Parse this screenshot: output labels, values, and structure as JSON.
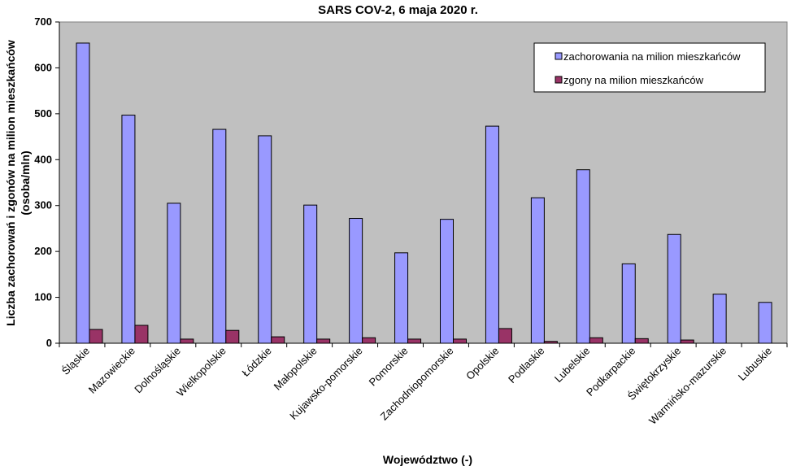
{
  "chart_data": {
    "type": "bar",
    "title": "SARS COV-2, 6 maja 2020 r.",
    "xlabel": "Województwo (-)",
    "ylabel_line1": "Liczba zachorowań i zgonów na milion mieszkańców",
    "ylabel_line2": "(osoba/mln)",
    "ylim": [
      0,
      700
    ],
    "yticks": [
      0,
      100,
      200,
      300,
      400,
      500,
      600,
      700
    ],
    "grid": false,
    "legend_position": "top-right",
    "categories": [
      "Śląskie",
      "Mazowieckie",
      "Dolnośląskie",
      "Wielkopolskie",
      "Łódzkie",
      "Małopolskie",
      "Kujawsko-pomorskie",
      "Pomorskie",
      "Zachodniopomorskie",
      "Opolskie",
      "Podlaskie",
      "Lubelskie",
      "Podkarpackie",
      "Świętokrzyskie",
      "Warmińsko-mazurskie",
      "Lubuskie"
    ],
    "series": [
      {
        "name": "zachorowania na milion mieszkańców",
        "color": "#9999ff",
        "values": [
          654,
          497,
          305,
          466,
          452,
          301,
          272,
          197,
          270,
          473,
          317,
          378,
          173,
          237,
          107,
          89
        ]
      },
      {
        "name": "zgony na milion mieszkańców",
        "color": "#993366",
        "values": [
          30,
          39,
          9,
          28,
          14,
          9,
          12,
          9,
          9,
          32,
          4,
          12,
          10,
          7,
          0,
          0
        ]
      }
    ],
    "colors": {
      "plot_background": "#c0c0c0",
      "axis": "#000000"
    }
  }
}
